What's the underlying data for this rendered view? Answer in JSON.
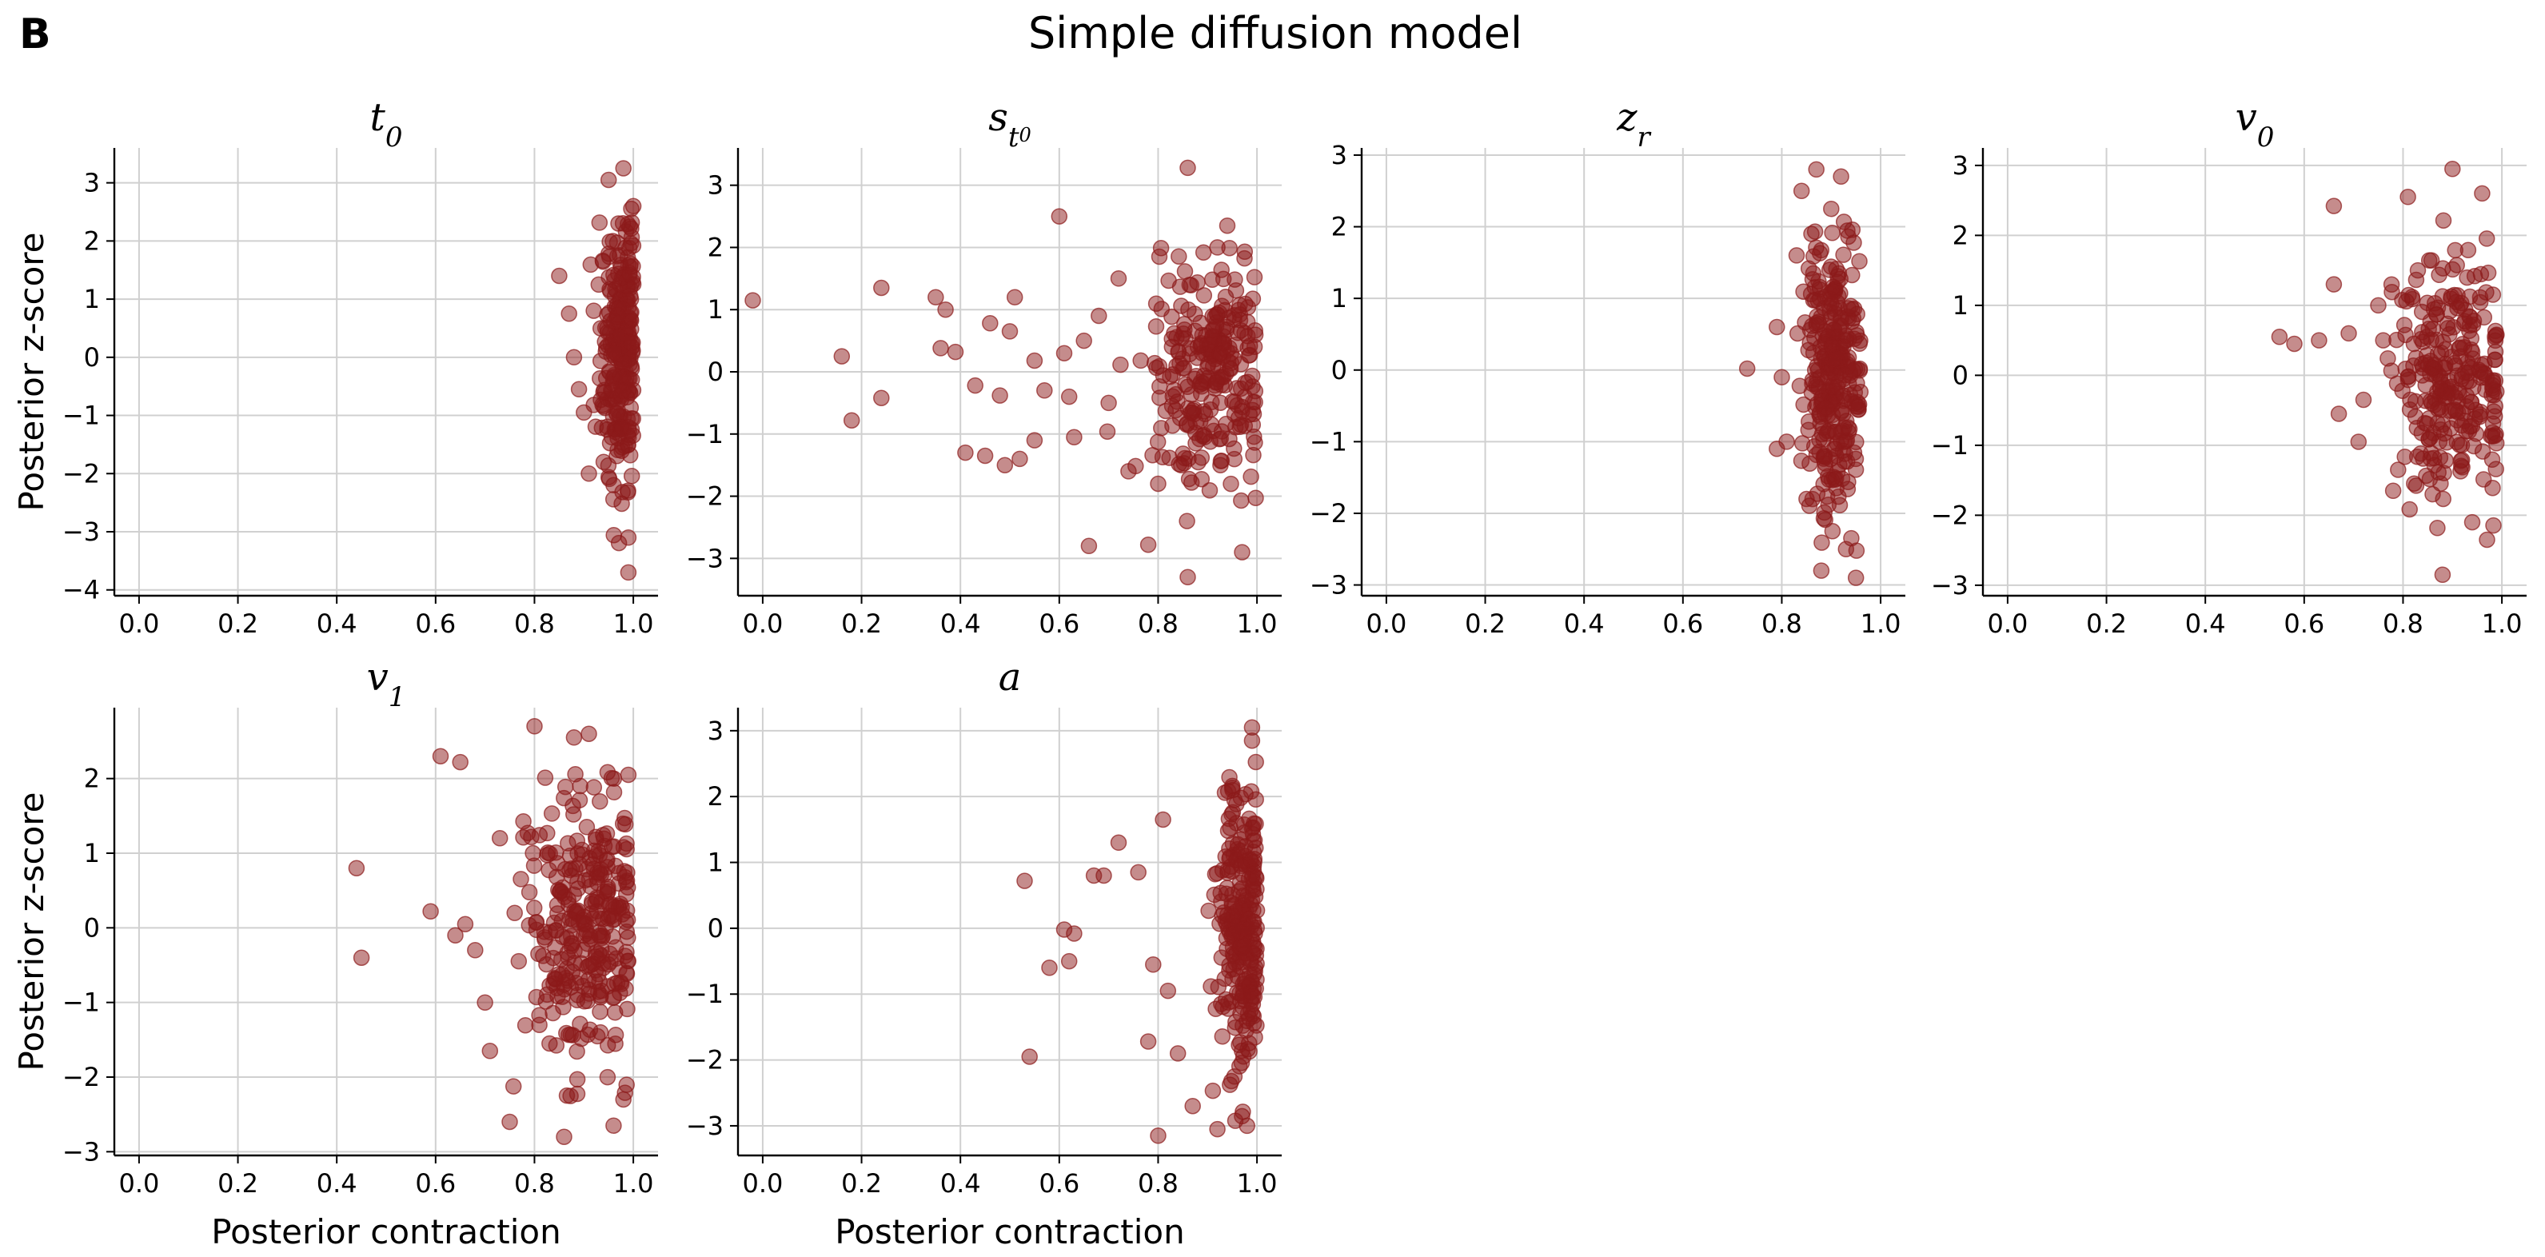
{
  "figure": {
    "panel_label": "B",
    "title": "Simple diffusion model",
    "xlabel": "Posterior contraction",
    "ylabel": "Posterior z-score"
  },
  "colors": {
    "point": "#8B1A1A",
    "grid": "#d0d0d0",
    "axis": "#000000"
  },
  "chart_data": [
    {
      "type": "scatter",
      "param": "t0",
      "title_main": "t",
      "title_sub": "0",
      "xlim": [
        -0.05,
        1.05
      ],
      "ylim": [
        -4.1,
        3.6
      ],
      "xticks": [
        "0.0",
        "0.2",
        "0.4",
        "0.6",
        "0.8",
        "1.0"
      ],
      "yticks": [
        "3",
        "2",
        "1",
        "0",
        "−1",
        "−2",
        "−3",
        "−4"
      ],
      "show_ylabel": true,
      "show_xlabel": false,
      "anchor_points": [
        [
          0.85,
          1.4
        ],
        [
          0.87,
          0.75
        ],
        [
          0.88,
          0.0
        ],
        [
          0.89,
          -0.55
        ],
        [
          0.9,
          -0.95
        ],
        [
          0.91,
          -2.0
        ],
        [
          0.92,
          0.8
        ],
        [
          0.93,
          1.25
        ],
        [
          0.95,
          3.05
        ],
        [
          0.97,
          2.3
        ],
        [
          0.98,
          3.25
        ],
        [
          0.99,
          -3.7
        ],
        [
          0.99,
          -3.1
        ],
        [
          1.0,
          2.6
        ],
        [
          0.96,
          -2.2
        ],
        [
          0.94,
          -1.8
        ]
      ],
      "cloud": {
        "count": 260,
        "x_mean": 0.975,
        "x_sd": 0.02,
        "x_max": 1.0,
        "y_sd": 1.1,
        "y_min": -3.2,
        "y_max": 2.6
      }
    },
    {
      "type": "scatter",
      "param": "st0",
      "title_main": "s",
      "title_sub": "t",
      "title_subsub": "0",
      "xlim": [
        -0.05,
        1.05
      ],
      "ylim": [
        -3.6,
        3.6
      ],
      "xticks": [
        "0.0",
        "0.2",
        "0.4",
        "0.6",
        "0.8",
        "1.0"
      ],
      "yticks": [
        "3",
        "2",
        "1",
        "0",
        "−1",
        "−2",
        "−3"
      ],
      "show_ylabel": false,
      "show_xlabel": false,
      "anchor_points": [
        [
          -0.02,
          1.15
        ],
        [
          0.16,
          0.25
        ],
        [
          0.18,
          -0.78
        ],
        [
          0.24,
          1.35
        ],
        [
          0.24,
          -0.42
        ],
        [
          0.35,
          1.2
        ],
        [
          0.37,
          1.0
        ],
        [
          0.36,
          0.38
        ],
        [
          0.39,
          0.32
        ],
        [
          0.41,
          -1.3
        ],
        [
          0.43,
          -0.22
        ],
        [
          0.45,
          -1.35
        ],
        [
          0.46,
          0.78
        ],
        [
          0.48,
          -0.38
        ],
        [
          0.49,
          -1.5
        ],
        [
          0.5,
          0.65
        ],
        [
          0.51,
          1.2
        ],
        [
          0.52,
          -1.4
        ],
        [
          0.55,
          0.18
        ],
        [
          0.57,
          -0.3
        ],
        [
          0.6,
          2.5
        ],
        [
          0.61,
          0.3
        ],
        [
          0.63,
          -1.05
        ],
        [
          0.66,
          -2.8
        ],
        [
          0.68,
          0.9
        ],
        [
          0.72,
          1.5
        ],
        [
          0.74,
          -1.6
        ],
        [
          0.78,
          -2.78
        ],
        [
          0.8,
          -1.8
        ],
        [
          0.86,
          3.28
        ],
        [
          0.86,
          -3.3
        ],
        [
          0.92,
          2.0
        ],
        [
          0.94,
          2.35
        ],
        [
          0.97,
          -2.9
        ],
        [
          0.55,
          -1.1
        ],
        [
          0.65,
          0.5
        ],
        [
          0.7,
          -0.5
        ],
        [
          0.62,
          -0.4
        ]
      ],
      "cloud": {
        "count": 260,
        "x_mean": 0.91,
        "x_sd": 0.06,
        "x_max": 1.0,
        "y_sd": 0.85,
        "y_min": -2.4,
        "y_max": 2.0
      }
    },
    {
      "type": "scatter",
      "param": "zr",
      "title_main": "z",
      "title_sub": "r",
      "xlim": [
        -0.05,
        1.05
      ],
      "ylim": [
        -3.15,
        3.1
      ],
      "xticks": [
        "0.0",
        "0.2",
        "0.4",
        "0.6",
        "0.8",
        "1.0"
      ],
      "yticks": [
        "3",
        "2",
        "1",
        "0",
        "−1",
        "−2",
        "−3"
      ],
      "show_ylabel": false,
      "show_xlabel": false,
      "anchor_points": [
        [
          0.73,
          0.02
        ],
        [
          0.79,
          0.6
        ],
        [
          0.79,
          -1.1
        ],
        [
          0.8,
          -0.1
        ],
        [
          0.81,
          -1.0
        ],
        [
          0.83,
          1.6
        ],
        [
          0.84,
          2.5
        ],
        [
          0.86,
          1.9
        ],
        [
          0.87,
          2.8
        ],
        [
          0.88,
          -2.8
        ],
        [
          0.92,
          2.7
        ],
        [
          0.95,
          -2.9
        ],
        [
          0.9,
          2.25
        ],
        [
          0.93,
          -2.5
        ],
        [
          0.85,
          -1.8
        ]
      ],
      "cloud": {
        "count": 300,
        "x_mean": 0.905,
        "x_sd": 0.03,
        "x_max": 0.96,
        "y_sd": 1.0,
        "y_min": -2.6,
        "y_max": 2.2
      }
    },
    {
      "type": "scatter",
      "param": "v0",
      "title_main": "v",
      "title_sub": "0",
      "xlim": [
        -0.05,
        1.05
      ],
      "ylim": [
        -3.15,
        3.25
      ],
      "xticks": [
        "0.0",
        "0.2",
        "0.4",
        "0.6",
        "0.8",
        "1.0"
      ],
      "yticks": [
        "3",
        "2",
        "1",
        "0",
        "−1",
        "−2",
        "−3"
      ],
      "show_ylabel": false,
      "show_xlabel": false,
      "anchor_points": [
        [
          0.55,
          0.55
        ],
        [
          0.58,
          0.45
        ],
        [
          0.63,
          0.5
        ],
        [
          0.66,
          2.42
        ],
        [
          0.66,
          1.3
        ],
        [
          0.67,
          -0.55
        ],
        [
          0.69,
          0.6
        ],
        [
          0.71,
          -0.95
        ],
        [
          0.72,
          -0.35
        ],
        [
          0.75,
          1.0
        ],
        [
          0.76,
          0.5
        ],
        [
          0.78,
          -1.65
        ],
        [
          0.79,
          -1.35
        ],
        [
          0.81,
          2.55
        ],
        [
          0.83,
          1.5
        ],
        [
          0.86,
          -1.7
        ],
        [
          0.88,
          -2.85
        ],
        [
          0.9,
          2.95
        ],
        [
          0.94,
          -2.1
        ],
        [
          0.96,
          2.6
        ],
        [
          0.97,
          -2.35
        ]
      ],
      "cloud": {
        "count": 270,
        "x_mean": 0.9,
        "x_sd": 0.06,
        "x_max": 0.99,
        "y_sd": 0.9,
        "y_min": -2.2,
        "y_max": 2.3
      }
    },
    {
      "type": "scatter",
      "param": "v1",
      "title_main": "v",
      "title_sub": "1",
      "xlim": [
        -0.05,
        1.05
      ],
      "ylim": [
        -3.05,
        2.95
      ],
      "xticks": [
        "0.0",
        "0.2",
        "0.4",
        "0.6",
        "0.8",
        "1.0"
      ],
      "yticks": [
        "2",
        "1",
        "0",
        "−1",
        "−2",
        "−3"
      ],
      "show_ylabel": true,
      "show_xlabel": true,
      "anchor_points": [
        [
          0.44,
          0.8
        ],
        [
          0.45,
          -0.4
        ],
        [
          0.59,
          0.22
        ],
        [
          0.61,
          2.3
        ],
        [
          0.65,
          2.22
        ],
        [
          0.66,
          0.05
        ],
        [
          0.68,
          -0.3
        ],
        [
          0.7,
          -1.0
        ],
        [
          0.71,
          -1.65
        ],
        [
          0.73,
          1.2
        ],
        [
          0.75,
          -2.6
        ],
        [
          0.76,
          0.2
        ],
        [
          0.8,
          2.7
        ],
        [
          0.81,
          -1.3
        ],
        [
          0.86,
          -2.8
        ],
        [
          0.88,
          2.55
        ],
        [
          0.91,
          2.6
        ],
        [
          0.96,
          -2.65
        ],
        [
          0.98,
          -2.3
        ],
        [
          0.99,
          2.05
        ],
        [
          0.64,
          -0.1
        ]
      ],
      "cloud": {
        "count": 300,
        "x_mean": 0.905,
        "x_sd": 0.055,
        "x_max": 0.99,
        "y_sd": 0.9,
        "y_min": -2.3,
        "y_max": 2.1
      }
    },
    {
      "type": "scatter",
      "param": "a",
      "title_main": "a",
      "xlim": [
        -0.05,
        1.05
      ],
      "ylim": [
        -3.45,
        3.35
      ],
      "xticks": [
        "0.0",
        "0.2",
        "0.4",
        "0.6",
        "0.8",
        "1.0"
      ],
      "yticks": [
        "3",
        "2",
        "1",
        "0",
        "−1",
        "−2",
        "−3"
      ],
      "show_ylabel": false,
      "show_xlabel": true,
      "anchor_points": [
        [
          0.53,
          0.72
        ],
        [
          0.54,
          -1.95
        ],
        [
          0.58,
          -0.6
        ],
        [
          0.61,
          -0.02
        ],
        [
          0.62,
          -0.5
        ],
        [
          0.63,
          -0.08
        ],
        [
          0.67,
          0.8
        ],
        [
          0.69,
          0.8
        ],
        [
          0.72,
          1.3
        ],
        [
          0.76,
          0.85
        ],
        [
          0.78,
          -1.72
        ],
        [
          0.79,
          -0.55
        ],
        [
          0.8,
          -3.15
        ],
        [
          0.81,
          1.65
        ],
        [
          0.84,
          -1.9
        ],
        [
          0.87,
          -2.7
        ],
        [
          0.92,
          -3.05
        ],
        [
          0.99,
          3.05
        ],
        [
          0.99,
          2.85
        ],
        [
          0.98,
          -3.0
        ],
        [
          0.82,
          -0.95
        ]
      ],
      "cloud": {
        "count": 260,
        "x_mean": 0.975,
        "x_sd": 0.025,
        "x_max": 1.0,
        "y_sd": 1.05,
        "y_min": -3.0,
        "y_max": 2.6
      }
    }
  ]
}
